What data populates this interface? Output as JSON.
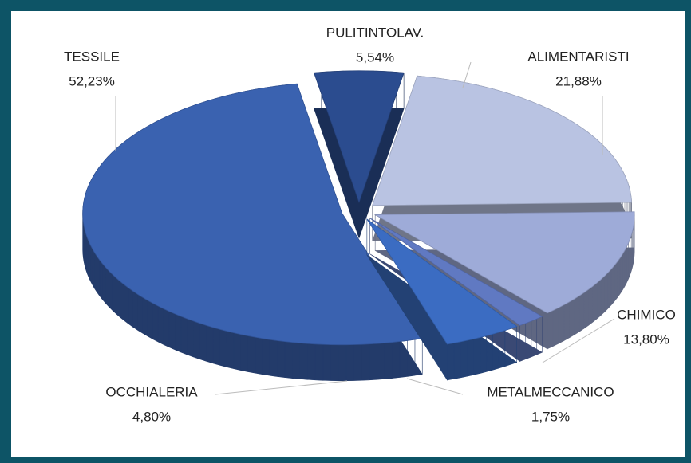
{
  "chart_data": {
    "type": "pie",
    "categories": [
      "PULITINTOLAV.",
      "ALIMENTARISTI",
      "CHIMICO",
      "METALMECCANICO",
      "OCCHIALERIA",
      "TESSILE"
    ],
    "values": [
      5.54,
      21.88,
      13.8,
      1.75,
      4.8,
      52.23
    ],
    "value_labels": [
      "5,54%",
      "21,88%",
      "13,80%",
      "1,75%",
      "4,80%",
      "52,23%"
    ],
    "colors": [
      "#2b4c8f",
      "#b9c3e2",
      "#9eabd8",
      "#6079c2",
      "#3b6cc2",
      "#3a62b0"
    ]
  }
}
